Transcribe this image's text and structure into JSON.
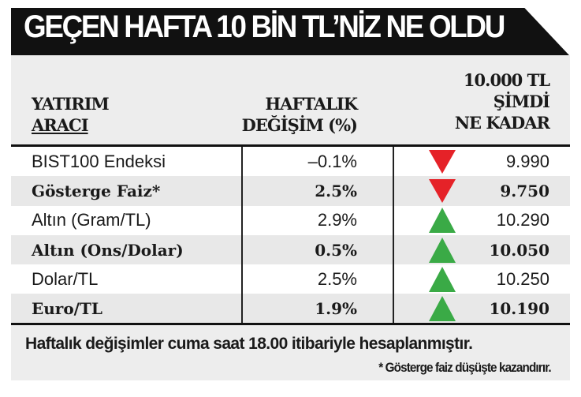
{
  "title": "GEÇEN HAFTA 10 BİN TL’NİZ NE OLDU",
  "headers": {
    "col1": [
      "YATIRIM",
      "ARACI"
    ],
    "col2": [
      "HAFTALIK",
      "DEĞİŞİM (%)"
    ],
    "col3": [
      "10.000 TL",
      "ŞİMDİ",
      "NE KADAR"
    ]
  },
  "colors": {
    "down": "#e52228",
    "up": "#3aaa46"
  },
  "rows": [
    {
      "name": "BIST100 Endeksi",
      "change": "–0.1%",
      "direction": "down",
      "value": "9.990"
    },
    {
      "name": "Gösterge Faiz*",
      "change": "2.5%",
      "direction": "down",
      "value": "9.750"
    },
    {
      "name": "Altın (Gram/TL)",
      "change": "2.9%",
      "direction": "up",
      "value": "10.290"
    },
    {
      "name": "Altın (Ons/Dolar)",
      "change": "0.5%",
      "direction": "up",
      "value": "10.050"
    },
    {
      "name": "Dolar/TL",
      "change": "2.5%",
      "direction": "up",
      "value": "10.250"
    },
    {
      "name": "Euro/TL",
      "change": "1.9%",
      "direction": "up",
      "value": "10.190"
    }
  ],
  "notes": {
    "main": "Haftalık değişimler cuma saat 18.00 itibariyle hesaplanmıştır.",
    "footnote": "* Gösterge faiz düşüşte kazandırır."
  }
}
